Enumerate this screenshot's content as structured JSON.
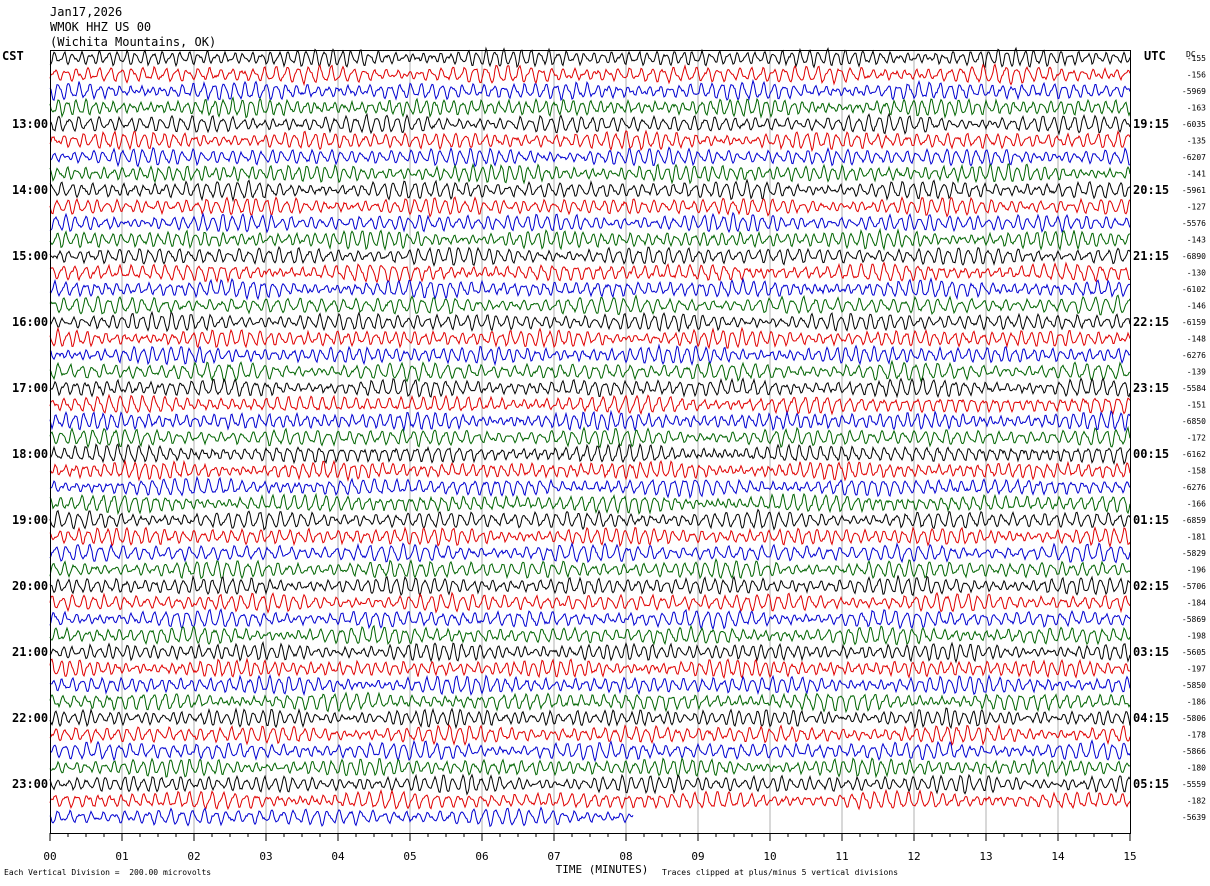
{
  "header": {
    "date": "Jan17,2026",
    "station": "WMOK HHZ US 00",
    "location": "(Wichita Mountains, OK)"
  },
  "left_tz": "CST",
  "right_tz": "UTC",
  "dc_label": "DC",
  "footer": {
    "scale": "Each Vertical Division =  200.00 microvolts",
    "clip": "Traces clipped at plus/minus 5 vertical divisions",
    "xlabel": "TIME (MINUTES)"
  },
  "colors": {
    "cycle": [
      "#000000",
      "#e00000",
      "#0000d0",
      "#006400"
    ],
    "grid": "#b0b0b0"
  },
  "chart_data": {
    "type": "line",
    "xlabel": "TIME (MINUTES)",
    "xlim": [
      0,
      15
    ],
    "x_ticks": [
      "00",
      "01",
      "02",
      "03",
      "04",
      "05",
      "06",
      "07",
      "08",
      "09",
      "10",
      "11",
      "12",
      "13",
      "14",
      "15"
    ],
    "traces_per_hour": 4,
    "num_traces": 47,
    "last_trace_end_minute": 8.1,
    "left_hour_labels": [
      {
        "trace": 4,
        "label": "13:00"
      },
      {
        "trace": 8,
        "label": "14:00"
      },
      {
        "trace": 12,
        "label": "15:00"
      },
      {
        "trace": 16,
        "label": "16:00"
      },
      {
        "trace": 20,
        "label": "17:00"
      },
      {
        "trace": 24,
        "label": "18:00"
      },
      {
        "trace": 28,
        "label": "19:00"
      },
      {
        "trace": 32,
        "label": "20:00"
      },
      {
        "trace": 36,
        "label": "21:00"
      },
      {
        "trace": 40,
        "label": "22:00"
      },
      {
        "trace": 44,
        "label": "23:00"
      }
    ],
    "right_hour_labels": [
      {
        "trace": 4,
        "label": "19:15"
      },
      {
        "trace": 8,
        "label": "20:15"
      },
      {
        "trace": 12,
        "label": "21:15"
      },
      {
        "trace": 16,
        "label": "22:15"
      },
      {
        "trace": 20,
        "label": "23:15"
      },
      {
        "trace": 24,
        "label": "00:15"
      },
      {
        "trace": 28,
        "label": "01:15"
      },
      {
        "trace": 32,
        "label": "02:15"
      },
      {
        "trace": 36,
        "label": "03:15"
      },
      {
        "trace": 40,
        "label": "04:15"
      },
      {
        "trace": 44,
        "label": "05:15"
      }
    ],
    "dc_offsets": [
      "-155",
      "-156",
      "-5969",
      "-163",
      "-6035",
      "-135",
      "-6207",
      "-141",
      "-5961",
      "-127",
      "-5576",
      "-143",
      "-6890",
      "-130",
      "-6102",
      "-146",
      "-6159",
      "-148",
      "-6276",
      "-139",
      "-5584",
      "-151",
      "-6850",
      "-172",
      "-6162",
      "-158",
      "-6276",
      "-166",
      "-6859",
      "-181",
      "-5829",
      "-196",
      "-5706",
      "-184",
      "-5869",
      "-198",
      "-5605",
      "-197",
      "-5850",
      "-186",
      "-5806",
      "-178",
      "-5866",
      "-180",
      "-5559",
      "-182",
      "-5639"
    ]
  }
}
